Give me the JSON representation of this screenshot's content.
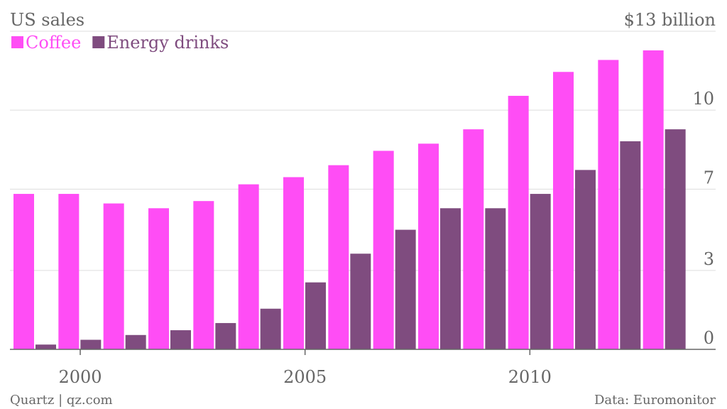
{
  "chart_data": {
    "type": "bar",
    "title": "US sales",
    "unit_label": "$13 billion",
    "categories": [
      "1999",
      "2000",
      "2001",
      "2002",
      "2003",
      "2004",
      "2005",
      "2006",
      "2007",
      "2008",
      "2009",
      "2010",
      "2011",
      "2012",
      "2013"
    ],
    "x_ticks": [
      {
        "category": "2000",
        "label": "2000"
      },
      {
        "category": "2005",
        "label": "2005"
      },
      {
        "category": "2010",
        "label": "2010"
      }
    ],
    "y_ticks": [
      "0",
      "3",
      "7",
      "10"
    ],
    "y_tick_values": [
      0,
      3.3,
      6.7,
      10
    ],
    "ylim": [
      0,
      13.3
    ],
    "series": [
      {
        "name": "Coffee",
        "color": "#ff4df5",
        "values": [
          6.5,
          6.5,
          6.1,
          5.9,
          6.2,
          6.9,
          7.2,
          7.7,
          8.3,
          8.6,
          9.2,
          10.6,
          11.6,
          12.1,
          12.5
        ]
      },
      {
        "name": "Energy drinks",
        "color": "#7f4c7f",
        "values": [
          0.2,
          0.4,
          0.6,
          0.8,
          1.1,
          1.7,
          2.8,
          4.0,
          5.0,
          5.9,
          5.9,
          6.5,
          7.5,
          8.7,
          9.2
        ]
      }
    ],
    "grid": true,
    "legend": "top-left"
  },
  "footer": {
    "source_left": "Quartz | qz.com",
    "source_right": "Data: Euromonitor"
  },
  "colors": {
    "grid": "#dddddd",
    "axis": "#666666",
    "text": "#666666"
  }
}
